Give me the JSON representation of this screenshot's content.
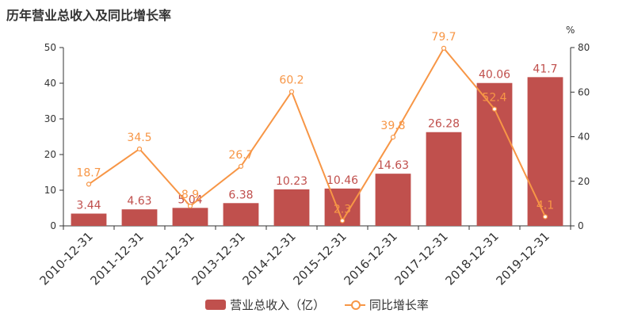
{
  "chart_data": {
    "type": "bar",
    "title": "历年营业总收入及同比增长率",
    "categories": [
      "2010-12-31",
      "2011-12-31",
      "2012-12-31",
      "2013-12-31",
      "2014-12-31",
      "2015-12-31",
      "2016-12-31",
      "2017-12-31",
      "2018-12-31",
      "2019-12-31"
    ],
    "series": [
      {
        "name": "营业总收入（亿）",
        "type": "bar",
        "axis": "left",
        "color": "#c0504d",
        "values": [
          3.44,
          4.63,
          5.04,
          6.38,
          10.23,
          10.46,
          14.63,
          26.28,
          40.06,
          41.7
        ]
      },
      {
        "name": "同比增长率",
        "type": "line",
        "axis": "right",
        "color": "#f79646",
        "values": [
          18.7,
          34.5,
          8.9,
          26.7,
          60.2,
          2.3,
          39.8,
          79.7,
          52.4,
          4.1
        ]
      }
    ],
    "y_left": {
      "ylim": [
        0,
        50
      ],
      "ticks": [
        0,
        10,
        20,
        30,
        40,
        50
      ]
    },
    "y_right": {
      "ylim": [
        0,
        80
      ],
      "ticks": [
        0,
        20,
        40,
        60,
        80
      ],
      "unit": "%"
    },
    "bar_labels": [
      "3.44",
      "4.63",
      "5.04",
      "6.38",
      "10.23",
      "10.46",
      "14.63",
      "26.28",
      "40.06",
      "41.7"
    ],
    "line_labels": [
      "18.7",
      "34.5",
      "8.9",
      "26.7",
      "60.2",
      "2.3",
      "39.8",
      "79.7",
      "52.4",
      "4.1"
    ],
    "legend_position": "bottom",
    "grid": false
  },
  "legend": {
    "bar_label": "营业总收入（亿）",
    "line_label": "同比增长率"
  }
}
